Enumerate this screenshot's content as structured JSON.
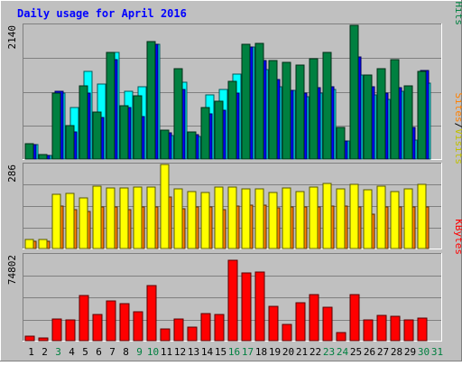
{
  "chart_data": {
    "type": "bar",
    "title": "Daily usage for April 2016",
    "categories": [
      "1",
      "2",
      "3",
      "4",
      "5",
      "6",
      "7",
      "8",
      "9",
      "10",
      "11",
      "12",
      "13",
      "14",
      "15",
      "16",
      "17",
      "18",
      "19",
      "20",
      "21",
      "22",
      "23",
      "24",
      "25",
      "26",
      "27",
      "28",
      "29",
      "30",
      "31"
    ],
    "weekend_days": [
      "3",
      "9",
      "10",
      "16",
      "17",
      "23",
      "24",
      "30",
      "31"
    ],
    "panels": [
      {
        "id": "hits",
        "scale_label": "2140",
        "max": 2140,
        "series": [
          {
            "name": "Pages",
            "color": "#00ffff",
            "values": [
              230,
              60,
              1050,
              830,
              1400,
              1200,
              1700,
              1080,
              1160,
              1840,
              380,
              1230,
              360,
              1020,
              1120,
              1360,
              1800,
              1430,
              1160,
              1100,
              1000,
              1060,
              1120,
              290,
              1350,
              1030,
              960,
              1090,
              300,
              1210,
              0
            ]
          },
          {
            "name": "Files",
            "color": "#0000ff",
            "values": [
              230,
              60,
              1080,
              440,
              1050,
              660,
              1590,
              820,
              680,
              1840,
              420,
              1120,
              390,
              720,
              780,
              1050,
              1790,
              1580,
              1270,
              1100,
              1050,
              1140,
              1160,
              290,
              1630,
              1160,
              1050,
              1140,
              510,
              1420,
              0
            ]
          },
          {
            "name": "Hits",
            "color": "#008040",
            "values": [
              240,
              70,
              1060,
              540,
              1170,
              750,
              1710,
              860,
              1010,
              1880,
              460,
              1440,
              430,
              820,
              920,
              1240,
              1840,
              1850,
              1580,
              1550,
              1510,
              1610,
              1710,
              510,
              2140,
              1350,
              1450,
              1590,
              1170,
              1400,
              0
            ]
          }
        ]
      },
      {
        "id": "visits",
        "scale_label": "286",
        "max": 286,
        "series": [
          {
            "name": "Sites",
            "color": "#ff8000",
            "values": [
              26,
              26,
              145,
              131,
              127,
              140,
              140,
              131,
              140,
              140,
              176,
              134,
              140,
              140,
              131,
              145,
              148,
              149,
              137,
              140,
              140,
              140,
              145,
              145,
              140,
              116,
              140,
              141,
              141,
              140,
              0
            ]
          },
          {
            "name": "Visits",
            "color": "#ffff00",
            "values": [
              30,
              30,
              186,
              189,
              172,
              212,
              205,
              205,
              209,
              209,
              286,
              202,
              195,
              191,
              210,
              210,
              204,
              202,
              191,
              207,
              194,
              209,
              221,
              204,
              217,
              200,
              212,
              193,
              202,
              219,
              0
            ]
          }
        ]
      },
      {
        "id": "kbytes",
        "scale_label": "74802",
        "max": 74802,
        "series": [
          {
            "name": "KBytes",
            "color": "#ff0000",
            "values": [
              4100,
              2300,
              19000,
              18500,
              39500,
              23000,
              34600,
              32000,
              25500,
              48000,
              10000,
              19200,
              12000,
              23900,
              23000,
              70200,
              58700,
              60000,
              30000,
              14000,
              33000,
              40000,
              29000,
              7000,
              40000,
              17800,
              22000,
              21000,
              18000,
              20000,
              0
            ]
          }
        ]
      }
    ]
  },
  "legend": {
    "hits": [
      {
        "text": "Pages",
        "color": "#00c0c0"
      },
      {
        "text": "/",
        "color": "#000000"
      },
      {
        "text": "Files",
        "color": "#0000ff"
      },
      {
        "text": "/",
        "color": "#000000"
      },
      {
        "text": "Hits",
        "color": "#008040"
      }
    ],
    "visits": [
      {
        "text": "Sites",
        "color": "#ff8000"
      },
      {
        "text": "/",
        "color": "#000000"
      },
      {
        "text": "Visits",
        "color": "#c0c000"
      }
    ],
    "kbytes": [
      {
        "text": "KBytes",
        "color": "#ff0000"
      }
    ]
  },
  "colors": {
    "background": "#c0c0c0",
    "title": "#0000ff",
    "weekday_label": "#000000",
    "weekend_label": "#008040"
  }
}
